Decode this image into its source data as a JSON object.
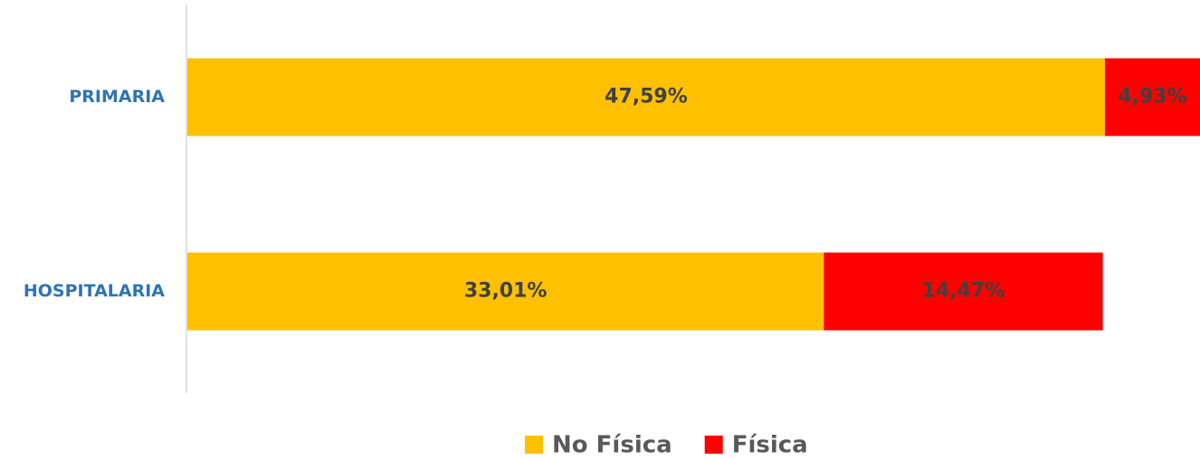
{
  "chart_data": {
    "type": "stacked_barh",
    "categories": [
      "PRIMARIA",
      "HOSPITALARIA"
    ],
    "series": [
      {
        "name": "No Física",
        "color": "#FFC000",
        "values": [
          47.59,
          33.01
        ],
        "value_labels": [
          "47,59%",
          "33,01%"
        ]
      },
      {
        "name": "Física",
        "color": "#FF0000",
        "values": [
          4.93,
          14.47
        ],
        "value_labels": [
          "4,93%",
          "14,47%"
        ]
      }
    ],
    "legend": "bottom"
  }
}
